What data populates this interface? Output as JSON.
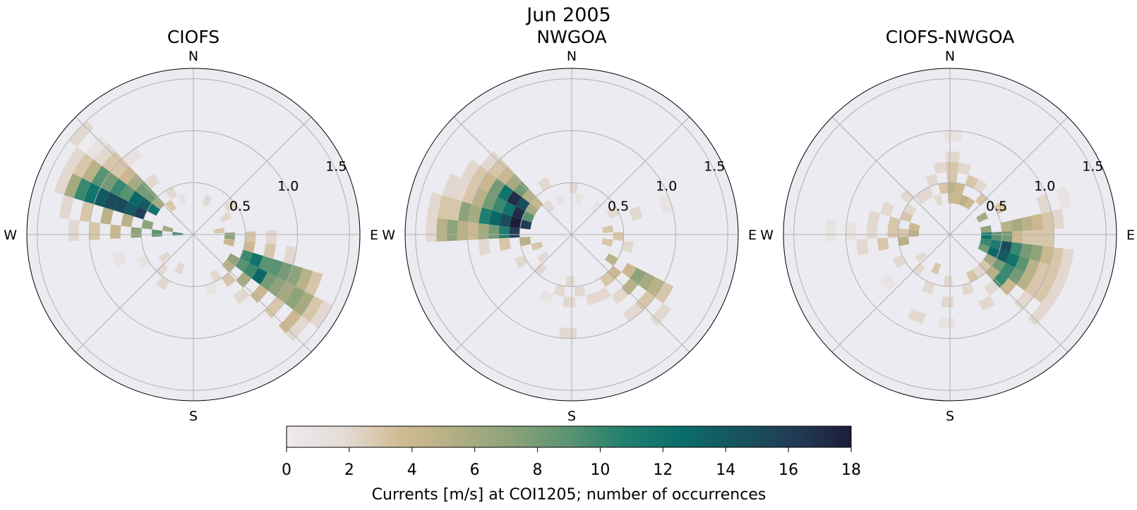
{
  "figure": {
    "suptitle": "Jun 2005"
  },
  "chart_data": [
    {
      "type": "heatmap",
      "projection": "polar",
      "title": "CIOFS",
      "direction_labels": [
        "N",
        "E",
        "S",
        "W"
      ],
      "radial_ticks": [
        "0.5",
        "1.0",
        "1.5"
      ],
      "radial_tick_values": [
        0.5,
        1.0,
        1.5
      ],
      "rlim": [
        0,
        1.6
      ],
      "grid": true,
      "bin_width_deg": 10,
      "bin_speed_step": 0.1,
      "cells": [
        [
          292,
          0.5,
          16
        ],
        [
          292,
          0.6,
          14
        ],
        [
          292,
          0.7,
          15
        ],
        [
          292,
          0.8,
          15
        ],
        [
          292,
          0.9,
          14
        ],
        [
          292,
          1.0,
          12
        ],
        [
          292,
          1.1,
          10
        ],
        [
          292,
          1.2,
          6
        ],
        [
          292,
          1.3,
          2
        ],
        [
          302,
          0.4,
          12
        ],
        [
          302,
          0.5,
          14
        ],
        [
          302,
          0.6,
          13
        ],
        [
          302,
          0.7,
          9
        ],
        [
          302,
          0.8,
          10
        ],
        [
          302,
          0.9,
          8
        ],
        [
          302,
          1.0,
          9
        ],
        [
          302,
          1.1,
          5
        ],
        [
          302,
          1.2,
          3
        ],
        [
          302,
          1.3,
          2
        ],
        [
          312,
          0.4,
          6
        ],
        [
          312,
          0.5,
          8
        ],
        [
          312,
          0.6,
          8
        ],
        [
          312,
          0.7,
          6
        ],
        [
          312,
          0.8,
          4
        ],
        [
          312,
          0.9,
          3
        ],
        [
          312,
          1.0,
          3
        ],
        [
          312,
          1.1,
          2
        ],
        [
          312,
          1.2,
          1
        ],
        [
          312,
          1.4,
          2
        ],
        [
          282,
          0.2,
          6
        ],
        [
          282,
          0.4,
          7
        ],
        [
          282,
          0.6,
          5
        ],
        [
          282,
          0.8,
          5
        ],
        [
          282,
          1.0,
          3
        ],
        [
          282,
          1.2,
          2
        ],
        [
          272,
          0.1,
          10
        ],
        [
          272,
          0.3,
          9
        ],
        [
          272,
          0.5,
          7
        ],
        [
          272,
          0.7,
          4
        ],
        [
          272,
          0.9,
          3
        ],
        [
          272,
          1.1,
          2
        ],
        [
          322,
          0.3,
          3
        ],
        [
          322,
          0.6,
          2
        ],
        [
          322,
          0.9,
          1
        ],
        [
          332,
          0.4,
          2
        ],
        [
          342,
          0.3,
          1
        ],
        [
          112,
          0.5,
          10
        ],
        [
          112,
          0.6,
          12
        ],
        [
          112,
          0.7,
          9
        ],
        [
          112,
          0.8,
          9
        ],
        [
          112,
          0.9,
          8
        ],
        [
          112,
          1.0,
          7
        ],
        [
          112,
          1.1,
          5
        ],
        [
          112,
          1.2,
          3
        ],
        [
          122,
          0.4,
          7
        ],
        [
          122,
          0.5,
          9
        ],
        [
          122,
          0.6,
          10
        ],
        [
          122,
          0.7,
          13
        ],
        [
          122,
          0.8,
          8
        ],
        [
          122,
          0.9,
          7
        ],
        [
          122,
          1.0,
          6
        ],
        [
          122,
          1.1,
          7
        ],
        [
          122,
          1.2,
          6
        ],
        [
          122,
          1.3,
          3
        ],
        [
          122,
          1.4,
          2
        ],
        [
          132,
          0.4,
          5
        ],
        [
          132,
          0.6,
          6
        ],
        [
          132,
          0.8,
          4
        ],
        [
          132,
          1.0,
          3
        ],
        [
          132,
          1.2,
          4
        ],
        [
          132,
          1.3,
          2
        ],
        [
          102,
          0.3,
          4
        ],
        [
          102,
          0.5,
          4
        ],
        [
          102,
          0.7,
          3
        ],
        [
          102,
          0.9,
          2
        ],
        [
          92,
          0.3,
          7
        ],
        [
          92,
          0.5,
          3
        ],
        [
          92,
          0.7,
          2
        ],
        [
          142,
          0.5,
          3
        ],
        [
          142,
          0.7,
          2
        ],
        [
          152,
          0.4,
          2
        ],
        [
          162,
          0.5,
          1
        ],
        [
          202,
          0.3,
          2
        ],
        [
          212,
          0.5,
          2
        ],
        [
          222,
          0.4,
          2
        ],
        [
          232,
          0.3,
          2
        ],
        [
          242,
          0.5,
          1
        ],
        [
          252,
          0.7,
          1
        ],
        [
          22,
          0.3,
          2
        ],
        [
          52,
          0.4,
          2
        ],
        [
          62,
          0.3,
          2
        ],
        [
          82,
          0.2,
          3
        ]
      ]
    },
    {
      "type": "heatmap",
      "projection": "polar",
      "title": "NWGOA",
      "direction_labels": [
        "N",
        "E",
        "S",
        "W"
      ],
      "radial_ticks": [
        "0.5",
        "1.0",
        "1.5"
      ],
      "radial_tick_values": [
        0.5,
        1.0,
        1.5
      ],
      "rlim": [
        0,
        1.6
      ],
      "grid": true,
      "bin_width_deg": 10,
      "bin_speed_step": 0.1,
      "cells": [
        [
          272,
          0.5,
          16
        ],
        [
          272,
          0.6,
          11
        ],
        [
          272,
          0.7,
          8
        ],
        [
          272,
          0.8,
          6
        ],
        [
          272,
          0.9,
          4
        ],
        [
          272,
          1.0,
          5
        ],
        [
          272,
          1.1,
          7
        ],
        [
          272,
          1.2,
          5
        ],
        [
          272,
          1.3,
          2
        ],
        [
          282,
          0.4,
          16
        ],
        [
          282,
          0.5,
          18
        ],
        [
          282,
          0.6,
          15
        ],
        [
          282,
          0.7,
          13
        ],
        [
          282,
          0.8,
          11
        ],
        [
          282,
          0.9,
          6
        ],
        [
          282,
          1.0,
          7
        ],
        [
          282,
          1.1,
          3
        ],
        [
          282,
          1.2,
          3
        ],
        [
          282,
          1.3,
          2
        ],
        [
          292,
          0.4,
          9
        ],
        [
          292,
          0.5,
          17
        ],
        [
          292,
          0.6,
          12
        ],
        [
          292,
          0.7,
          10
        ],
        [
          292,
          0.8,
          8
        ],
        [
          292,
          0.9,
          5
        ],
        [
          292,
          1.0,
          3
        ],
        [
          292,
          1.1,
          2
        ],
        [
          292,
          1.2,
          2
        ],
        [
          302,
          0.4,
          6
        ],
        [
          302,
          0.5,
          15
        ],
        [
          302,
          0.6,
          17
        ],
        [
          302,
          0.7,
          12
        ],
        [
          302,
          0.8,
          8
        ],
        [
          302,
          0.9,
          4
        ],
        [
          302,
          1.0,
          3
        ],
        [
          302,
          1.1,
          2
        ],
        [
          312,
          0.4,
          4
        ],
        [
          312,
          0.5,
          5
        ],
        [
          312,
          0.6,
          8
        ],
        [
          312,
          0.7,
          6
        ],
        [
          312,
          0.8,
          4
        ],
        [
          312,
          0.9,
          3
        ],
        [
          312,
          1.0,
          2
        ],
        [
          262,
          0.4,
          5
        ],
        [
          262,
          0.6,
          3
        ],
        [
          262,
          0.8,
          2
        ],
        [
          252,
          0.3,
          3
        ],
        [
          242,
          0.5,
          2
        ],
        [
          322,
          0.3,
          2
        ],
        [
          332,
          0.5,
          2
        ],
        [
          342,
          0.3,
          1
        ],
        [
          2,
          0.4,
          2
        ],
        [
          12,
          0.3,
          1
        ],
        [
          122,
          0.4,
          5
        ],
        [
          122,
          0.6,
          4
        ],
        [
          122,
          0.7,
          7
        ],
        [
          122,
          0.8,
          6
        ],
        [
          122,
          0.9,
          5
        ],
        [
          122,
          1.0,
          3
        ],
        [
          132,
          0.5,
          4
        ],
        [
          132,
          0.7,
          5
        ],
        [
          132,
          0.9,
          3
        ],
        [
          132,
          1.1,
          2
        ],
        [
          142,
          0.5,
          3
        ],
        [
          142,
          0.7,
          2
        ],
        [
          142,
          0.9,
          2
        ],
        [
          152,
          0.6,
          2
        ],
        [
          162,
          0.6,
          2
        ],
        [
          172,
          0.5,
          2
        ],
        [
          182,
          0.4,
          2
        ],
        [
          182,
          0.6,
          2
        ],
        [
          182,
          0.9,
          2
        ],
        [
          192,
          0.5,
          2
        ],
        [
          202,
          0.6,
          1
        ],
        [
          222,
          0.4,
          2
        ],
        [
          232,
          0.3,
          2
        ],
        [
          82,
          0.3,
          3
        ],
        [
          92,
          0.4,
          3
        ],
        [
          102,
          0.3,
          3
        ],
        [
          102,
          0.5,
          2
        ],
        [
          62,
          0.4,
          2
        ],
        [
          42,
          0.3,
          1
        ],
        [
          72,
          0.6,
          2
        ],
        [
          72,
          0.9,
          1
        ]
      ]
    },
    {
      "type": "heatmap",
      "projection": "polar",
      "title": "CIOFS-NWGOA",
      "direction_labels": [
        "N",
        "E",
        "S",
        "W"
      ],
      "radial_ticks": [
        "0.5",
        "1.0",
        "1.5"
      ],
      "radial_tick_values": [
        0.5,
        1.0,
        1.5
      ],
      "rlim": [
        0,
        1.6
      ],
      "grid": true,
      "bin_width_deg": 10,
      "bin_speed_step": 0.1,
      "cells": [
        [
          2,
          0.3,
          4
        ],
        [
          2,
          0.4,
          5
        ],
        [
          2,
          0.5,
          3
        ],
        [
          2,
          0.6,
          3
        ],
        [
          2,
          0.7,
          2
        ],
        [
          2,
          0.9,
          1
        ],
        [
          12,
          0.3,
          4
        ],
        [
          12,
          0.4,
          4
        ],
        [
          12,
          0.6,
          2
        ],
        [
          352,
          0.4,
          3
        ],
        [
          352,
          0.6,
          2
        ],
        [
          342,
          0.3,
          2
        ],
        [
          342,
          0.5,
          2
        ],
        [
          22,
          0.3,
          5
        ],
        [
          22,
          0.5,
          3
        ],
        [
          32,
          0.3,
          4
        ],
        [
          32,
          0.5,
          2
        ],
        [
          42,
          0.4,
          3
        ],
        [
          62,
          0.3,
          6
        ],
        [
          62,
          0.5,
          3
        ],
        [
          82,
          0.3,
          7
        ],
        [
          82,
          0.5,
          5
        ],
        [
          82,
          0.6,
          6
        ],
        [
          82,
          0.7,
          5
        ],
        [
          82,
          0.8,
          4
        ],
        [
          82,
          0.9,
          3
        ],
        [
          82,
          1.0,
          2
        ],
        [
          92,
          0.3,
          12
        ],
        [
          92,
          0.4,
          9
        ],
        [
          92,
          0.5,
          8
        ],
        [
          92,
          0.6,
          4
        ],
        [
          92,
          0.7,
          3
        ],
        [
          92,
          0.8,
          3
        ],
        [
          92,
          0.9,
          3
        ],
        [
          102,
          0.3,
          10
        ],
        [
          102,
          0.4,
          11
        ],
        [
          102,
          0.5,
          15
        ],
        [
          102,
          0.6,
          10
        ],
        [
          102,
          0.7,
          8
        ],
        [
          102,
          0.8,
          7
        ],
        [
          102,
          0.9,
          4
        ],
        [
          102,
          1.0,
          3
        ],
        [
          102,
          1.1,
          2
        ],
        [
          112,
          0.3,
          8
        ],
        [
          112,
          0.4,
          13
        ],
        [
          112,
          0.5,
          14
        ],
        [
          112,
          0.6,
          12
        ],
        [
          112,
          0.7,
          9
        ],
        [
          112,
          0.8,
          5
        ],
        [
          112,
          0.9,
          3
        ],
        [
          112,
          1.0,
          3
        ],
        [
          112,
          1.1,
          2
        ],
        [
          122,
          0.4,
          6
        ],
        [
          122,
          0.5,
          8
        ],
        [
          122,
          0.6,
          10
        ],
        [
          122,
          0.7,
          8
        ],
        [
          122,
          0.8,
          5
        ],
        [
          122,
          0.9,
          3
        ],
        [
          122,
          1.0,
          3
        ],
        [
          122,
          1.1,
          2
        ],
        [
          132,
          0.4,
          3
        ],
        [
          132,
          0.5,
          5
        ],
        [
          132,
          0.6,
          10
        ],
        [
          132,
          0.7,
          4
        ],
        [
          132,
          0.9,
          2
        ],
        [
          132,
          1.1,
          2
        ],
        [
          142,
          0.4,
          2
        ],
        [
          142,
          0.6,
          2
        ],
        [
          152,
          0.4,
          3
        ],
        [
          152,
          0.7,
          2
        ],
        [
          162,
          0.5,
          2
        ],
        [
          182,
          0.4,
          2
        ],
        [
          182,
          0.6,
          2
        ],
        [
          182,
          0.8,
          1
        ],
        [
          202,
          0.3,
          3
        ],
        [
          202,
          0.5,
          2
        ],
        [
          202,
          0.8,
          2
        ],
        [
          222,
          0.4,
          2
        ],
        [
          232,
          0.3,
          2
        ],
        [
          232,
          0.7,
          1
        ],
        [
          242,
          0.5,
          2
        ],
        [
          262,
          0.4,
          5
        ],
        [
          262,
          0.6,
          3
        ],
        [
          262,
          0.8,
          2
        ],
        [
          272,
          0.3,
          5
        ],
        [
          272,
          0.4,
          3
        ],
        [
          272,
          0.5,
          3
        ],
        [
          272,
          0.7,
          2
        ],
        [
          272,
          0.9,
          1
        ],
        [
          272,
          1.1,
          1
        ],
        [
          282,
          0.3,
          4
        ],
        [
          282,
          0.5,
          3
        ],
        [
          282,
          0.7,
          2
        ],
        [
          292,
          0.4,
          3
        ],
        [
          292,
          0.6,
          2
        ],
        [
          302,
          0.4,
          2
        ],
        [
          312,
          0.5,
          2
        ],
        [
          322,
          0.4,
          2
        ],
        [
          332,
          0.4,
          2
        ],
        [
          72,
          0.9,
          2
        ],
        [
          72,
          1.1,
          1
        ]
      ]
    }
  ],
  "colorbar": {
    "label": "Currents [m/s] at COI1205; number of occurrences",
    "ticks": [
      "0",
      "2",
      "4",
      "6",
      "8",
      "10",
      "12",
      "14",
      "16",
      "18"
    ],
    "tick_values": [
      0,
      2,
      4,
      6,
      8,
      10,
      12,
      14,
      16,
      18
    ],
    "range": [
      0,
      18
    ],
    "colormap": [
      "#ede9ee",
      "#e4dcd7",
      "#d2bb94",
      "#b2ae83",
      "#8ba27a",
      "#5a9372",
      "#207f6f",
      "#0a6d6b",
      "#16545f",
      "#223b55",
      "#1d1d3a"
    ],
    "background_color": "#ebebf1"
  }
}
